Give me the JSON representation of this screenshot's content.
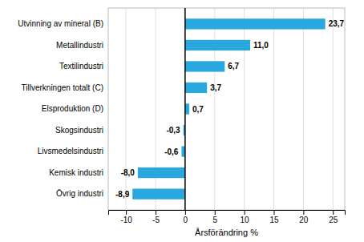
{
  "chart_data": {
    "type": "bar",
    "orientation": "horizontal",
    "categories": [
      "Övrig industri",
      "Kemisk industri",
      "Livsmedelsindustri",
      "Skogsindustri",
      "Elsproduktion (D)",
      "Tillverkningen totalt (C)",
      "Textilindustri",
      "Metallindustri",
      "Utvinning av mineral (B)"
    ],
    "values": [
      -8.9,
      -8.0,
      -0.6,
      -0.3,
      0.7,
      3.7,
      6.7,
      11.0,
      23.7
    ],
    "value_labels": [
      "-8,9",
      "-8,0",
      "-0,6",
      "-0,3",
      "0,7",
      "3,7",
      "6,7",
      "11,0",
      "23,7"
    ],
    "data_labels": true,
    "color": "#29a8e0",
    "xlabel": "Årsförändring %",
    "xlim": [
      -13,
      27
    ],
    "xticks": [
      -10,
      -5,
      0,
      5,
      10,
      15,
      20,
      25
    ],
    "grid": true
  }
}
